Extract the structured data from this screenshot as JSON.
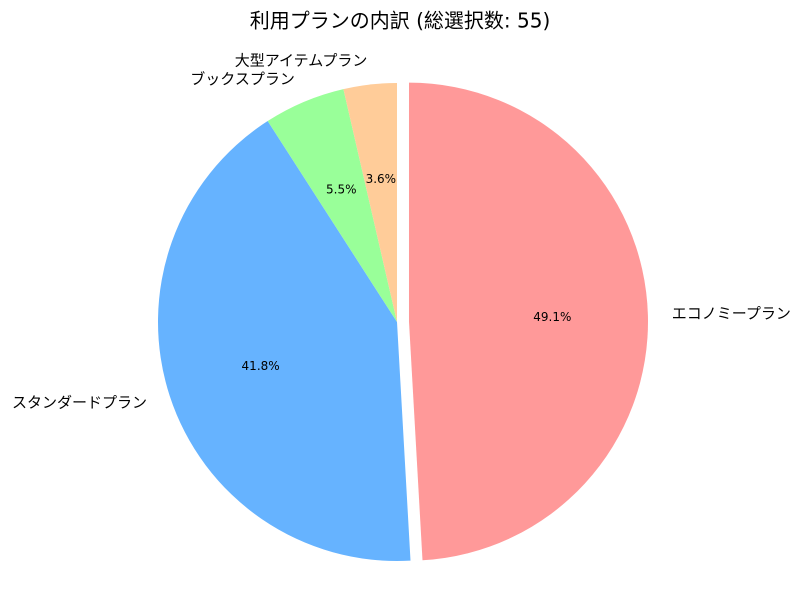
{
  "chart_data": {
    "type": "pie",
    "title": "利用プランの内訳 (総選択数: 55)",
    "categories": [
      "エコノミープラン",
      "スタンダードプラン",
      "ブックスプラン",
      "大型アイテムプラン"
    ],
    "values": [
      49.1,
      41.8,
      5.5,
      3.6
    ],
    "value_labels": [
      "49.1%",
      "41.8%",
      "5.5%",
      "3.6%"
    ],
    "colors": [
      "#ff9999",
      "#66b3ff",
      "#99ff99",
      "#ffcc99"
    ]
  }
}
